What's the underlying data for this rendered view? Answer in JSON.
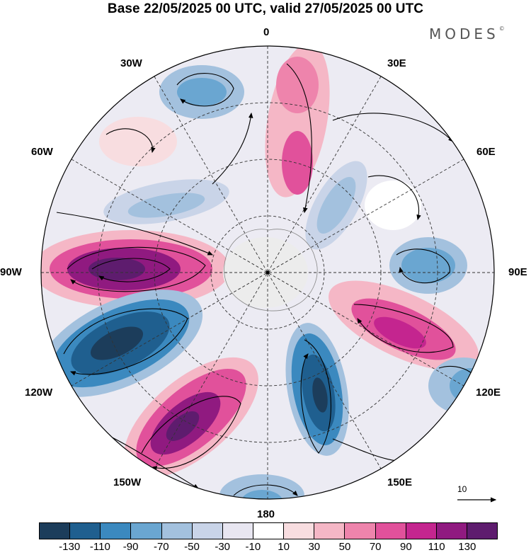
{
  "title": "Base 22/05/2025 00 UTC, valid 27/05/2025 00 UTC",
  "brand": "MODES",
  "brand_mark": "©",
  "longitude_labels": {
    "n0": "0",
    "n30e": "30E",
    "n60e": "60E",
    "n90e": "90E",
    "n120e": "120E",
    "n150e": "150E",
    "n180": "180",
    "n150w": "150W",
    "n120w": "120W",
    "n90w": "90W",
    "n60w": "60W",
    "n30w": "30W"
  },
  "reference_vector": "10",
  "colorbar": {
    "colors": [
      "#1c3d5b",
      "#1f5f8f",
      "#3b89bf",
      "#6aa6d1",
      "#a3c1de",
      "#c9d4e8",
      "#e8e6f1",
      "#ffffff",
      "#f8dde0",
      "#f5b7c6",
      "#ee84ac",
      "#e1519b",
      "#c4258f",
      "#901a80",
      "#5e1c6e"
    ],
    "ticks": [
      "-130",
      "-110",
      "-90",
      "-70",
      "-50",
      "-30",
      "-10",
      "10",
      "30",
      "50",
      "70",
      "90",
      "110",
      "130"
    ]
  }
}
